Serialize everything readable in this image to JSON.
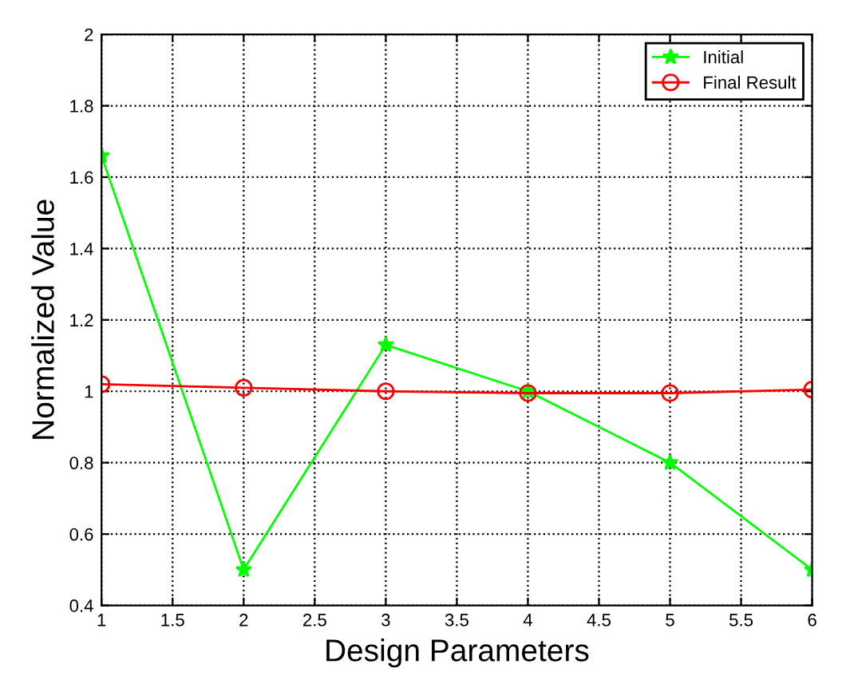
{
  "chart_data": {
    "type": "line",
    "xlabel": "Design Parameters",
    "ylabel": "Normalized Value",
    "x": [
      1,
      2,
      3,
      4,
      5,
      6
    ],
    "series": [
      {
        "name": "Initial",
        "color": "#00ff00",
        "marker": "star",
        "values": [
          1.66,
          0.5,
          1.13,
          1.0,
          0.8,
          0.5
        ]
      },
      {
        "name": "Final Result",
        "color": "#ff0000",
        "marker": "circle",
        "values": [
          1.02,
          1.01,
          1.0,
          0.995,
          0.995,
          1.005
        ]
      }
    ],
    "xlim": [
      1,
      6
    ],
    "xticks": [
      1,
      1.5,
      2,
      2.5,
      3,
      3.5,
      4,
      4.5,
      5,
      5.5,
      6
    ],
    "ylim": [
      0.4,
      2
    ],
    "yticks": [
      0.4,
      0.6,
      0.8,
      1,
      1.2,
      1.4,
      1.6,
      1.8,
      2
    ],
    "grid": true,
    "legend": "top right",
    "line_style": "solid"
  }
}
